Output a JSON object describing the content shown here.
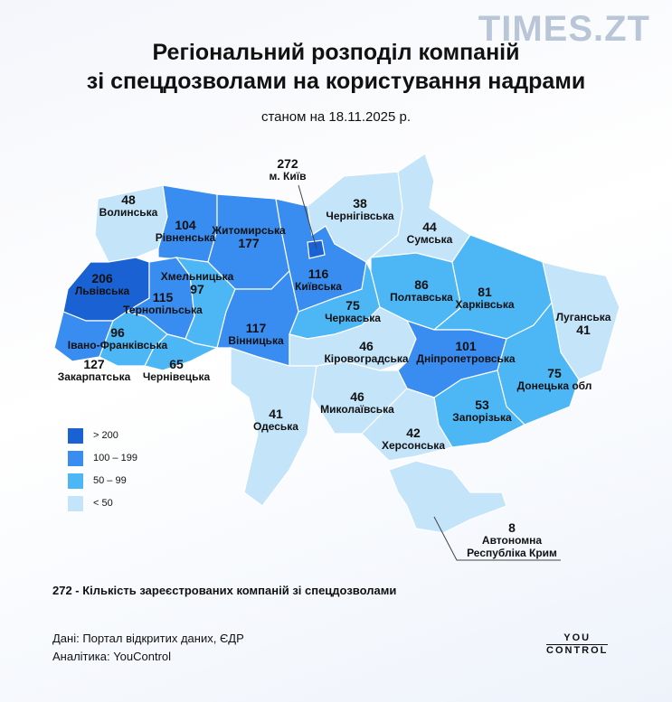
{
  "header": {
    "logo": "TIMES.ZT",
    "title_lines": [
      "Регіональний розподіл компаній",
      "зі спецдозволами на користування надрами"
    ],
    "subtitle": "станом на 18.11.2025 р."
  },
  "regions": [
    {
      "name": "Волинська",
      "value": 48,
      "color": "#c4e4fa"
    },
    {
      "name": "Рівненська",
      "value": 104,
      "color": "#3a8df0"
    },
    {
      "name": "Житомирська",
      "value": 177,
      "color": "#3a8df0"
    },
    {
      "name": "Київська",
      "value": 116,
      "color": "#3a8df0"
    },
    {
      "name": "м. Київ",
      "value": 272,
      "color": "#1a62d4"
    },
    {
      "name": "Чернігівська",
      "value": 38,
      "color": "#c4e4fa"
    },
    {
      "name": "Сумська",
      "value": 44,
      "color": "#c4e4fa"
    },
    {
      "name": "Львівська",
      "value": 206,
      "color": "#1a62d4"
    },
    {
      "name": "Тернопільська",
      "value": 115,
      "color": "#3a8df0"
    },
    {
      "name": "Хмельницька",
      "value": 97,
      "color": "#4db6f5"
    },
    {
      "name": "Вінницька",
      "value": 117,
      "color": "#3a8df0"
    },
    {
      "name": "Черкаська",
      "value": 75,
      "color": "#4db6f5"
    },
    {
      "name": "Полтавська",
      "value": 86,
      "color": "#4db6f5"
    },
    {
      "name": "Харківська",
      "value": 81,
      "color": "#4db6f5"
    },
    {
      "name": "Луганська",
      "value": 41,
      "color": "#c4e4fa"
    },
    {
      "name": "Закарпатська",
      "value": 127,
      "color": "#3a8df0"
    },
    {
      "name": "Івано-Франківська",
      "value": 96,
      "color": "#4db6f5"
    },
    {
      "name": "Чернівецька",
      "value": 65,
      "color": "#4db6f5"
    },
    {
      "name": "Кіровоградська",
      "value": 46,
      "color": "#c4e4fa"
    },
    {
      "name": "Дніпропетровська",
      "value": 101,
      "color": "#3a8df0"
    },
    {
      "name": "Донецька обл",
      "value": 75,
      "color": "#4db6f5"
    },
    {
      "name": "Одеська",
      "value": 41,
      "color": "#c4e4fa"
    },
    {
      "name": "Миколаївська",
      "value": 46,
      "color": "#c4e4fa"
    },
    {
      "name": "Запорізька",
      "value": 53,
      "color": "#4db6f5"
    },
    {
      "name": "Херсонська",
      "value": 42,
      "color": "#c4e4fa"
    },
    {
      "name": "Автономна Республіка Крим",
      "value": 8,
      "color": "#c4e4fa"
    }
  ],
  "legend": [
    {
      "label": "> 200",
      "color": "#1a62d4"
    },
    {
      "label": "100 – 199",
      "color": "#3a8df0"
    },
    {
      "label": "50 – 99",
      "color": "#4db6f5"
    },
    {
      "label": "< 50",
      "color": "#c4e4fa"
    }
  ],
  "note": "272 - Кількість зареєстрованих компаній зі спецдозволами",
  "footer": {
    "source_lines": [
      "Дані: Портал відкритих даних, ЄДР",
      "Аналітика: YouControl"
    ],
    "brand_lines": [
      "YOU",
      "CONTROL"
    ]
  }
}
